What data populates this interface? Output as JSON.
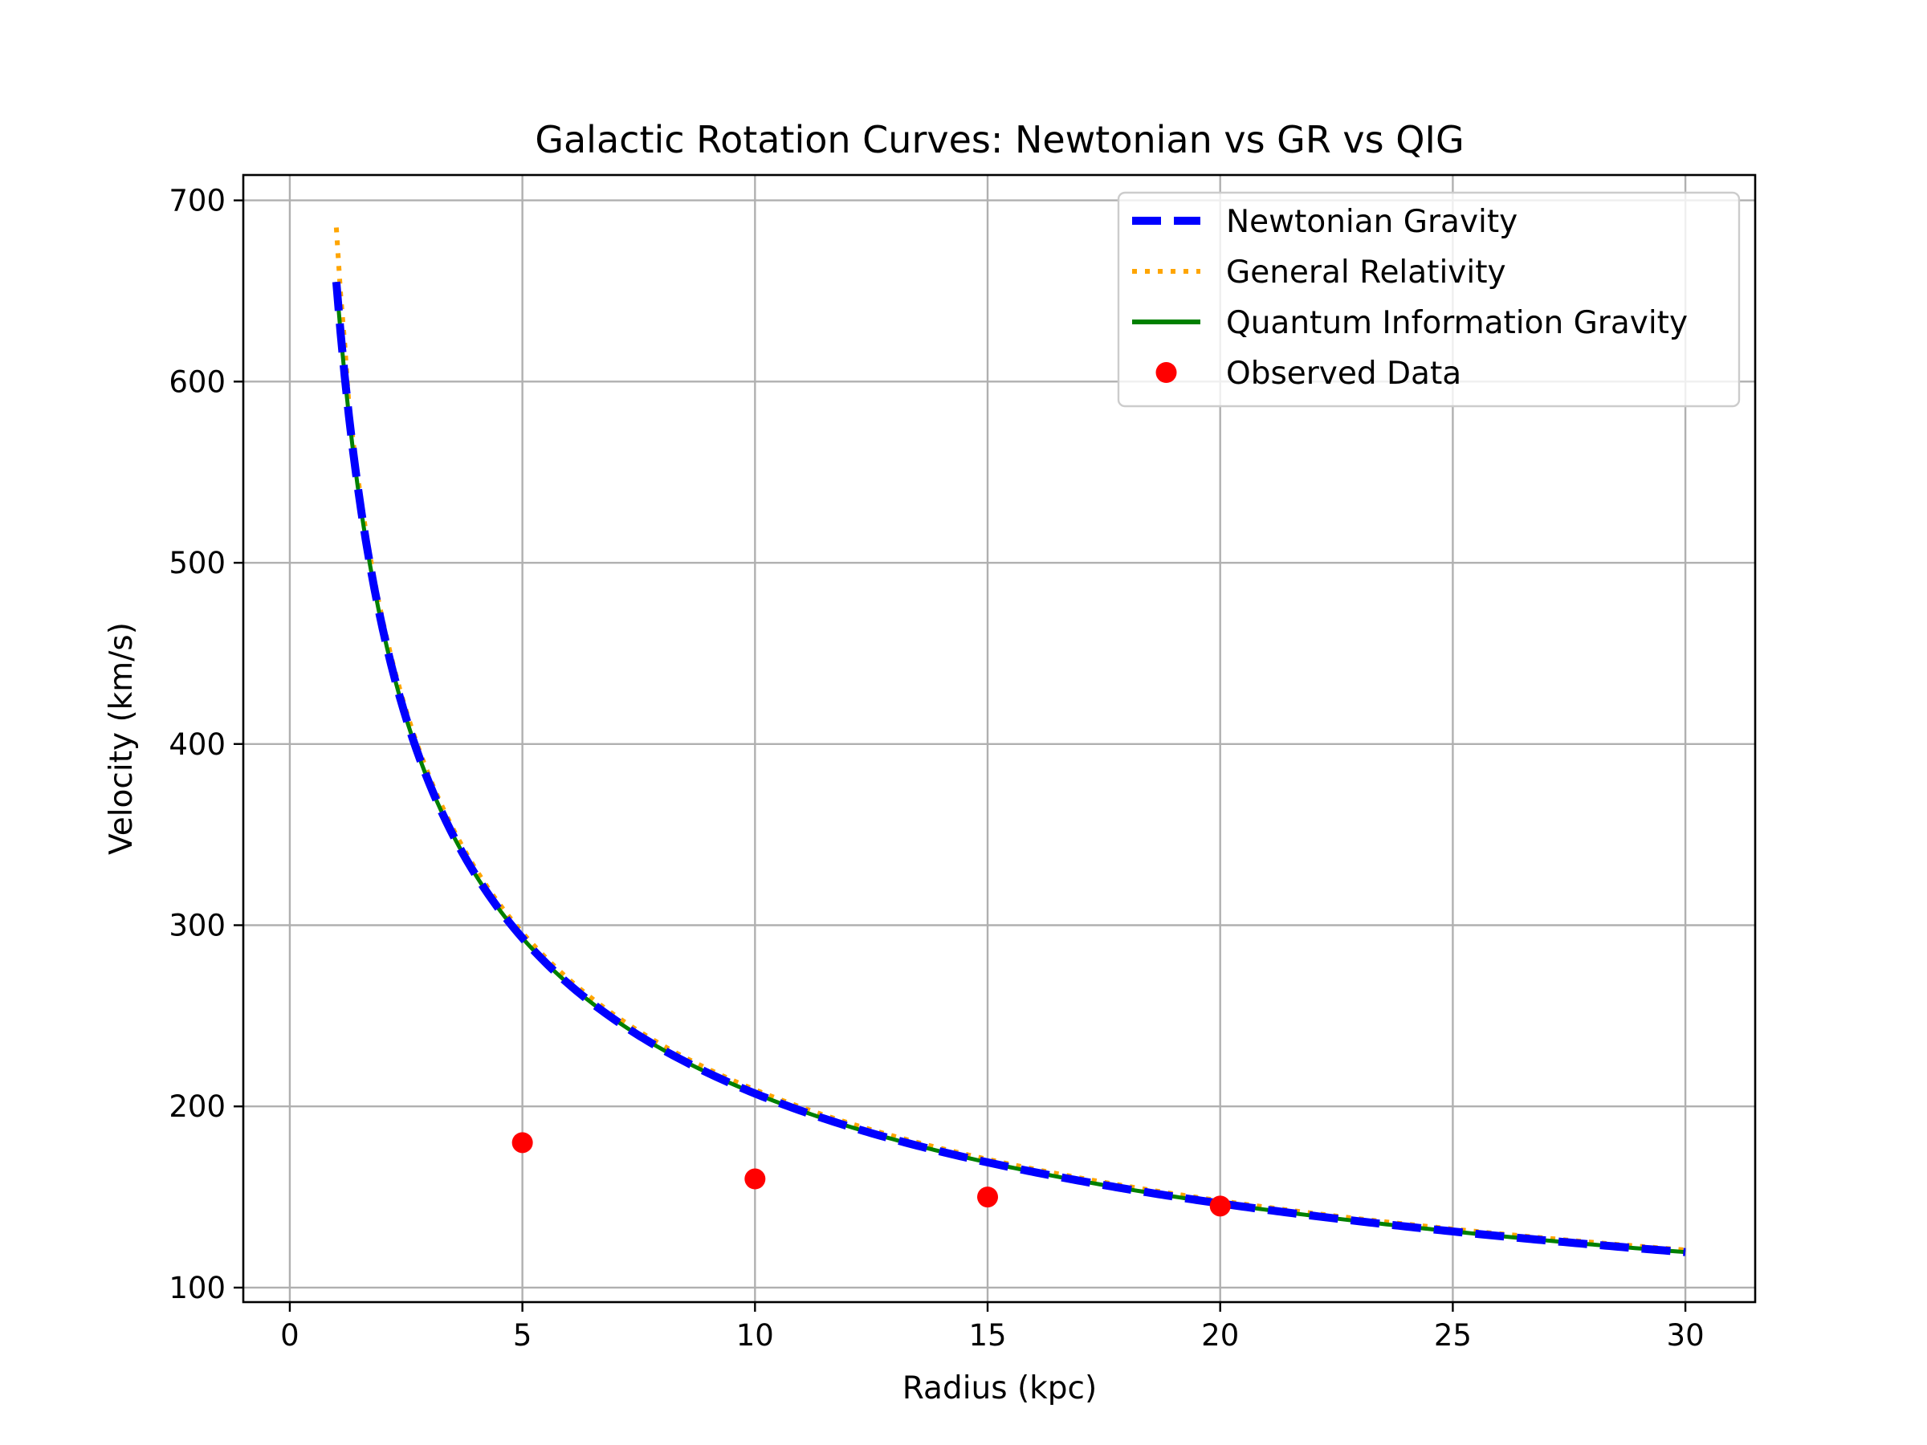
{
  "chart_data": {
    "type": "line",
    "title": "Galactic Rotation Curves: Newtonian vs GR vs QIG",
    "xlabel": "Radius (kpc)",
    "ylabel": "Velocity (km/s)",
    "xlim": [
      -1.0,
      31.5
    ],
    "ylim": [
      92,
      714
    ],
    "xticks": [
      0,
      5,
      10,
      15,
      20,
      25,
      30
    ],
    "yticks": [
      100,
      200,
      300,
      400,
      500,
      600,
      700
    ],
    "grid": true,
    "legend_position": "upper right",
    "curve_model": {
      "description_of_series": "v(r) = 655 / sqrt(r), r from 1 to 30 kpc",
      "r_min": 1,
      "r_max": 30,
      "newtonian_coefficient": 655,
      "gr_coefficient_factor": 1.01,
      "gr_near_center": [
        [
          1.0,
          685
        ],
        [
          1.1,
          645
        ],
        [
          1.25,
          600
        ]
      ]
    },
    "series": [
      {
        "name": "Newtonian Gravity",
        "style": "dashed",
        "color": "#0000ff",
        "x": [
          1,
          1.25,
          1.5,
          2,
          2.5,
          3,
          4,
          5,
          6,
          8,
          10,
          12,
          15,
          18,
          20,
          22,
          25,
          28,
          30
        ],
        "y": [
          655,
          586,
          535,
          463,
          414,
          378,
          328,
          293,
          267,
          232,
          207,
          189,
          169,
          154,
          146,
          140,
          131,
          124,
          120
        ]
      },
      {
        "name": "General Relativity",
        "style": "dotted",
        "color": "#ffa500",
        "x": [
          1,
          1.1,
          1.25,
          1.5,
          2,
          2.5,
          3,
          4,
          5,
          6,
          8,
          10,
          12,
          15,
          18,
          20,
          22,
          25,
          28,
          30
        ],
        "y": [
          685,
          645,
          600,
          541,
          468,
          419,
          382,
          331,
          296,
          270,
          234,
          209,
          191,
          171,
          156,
          148,
          141,
          132,
          125,
          121
        ]
      },
      {
        "name": "Quantum Information Gravity",
        "style": "solid",
        "color": "#008000",
        "x": [
          1,
          1.25,
          1.5,
          2,
          2.5,
          3,
          4,
          5,
          6,
          8,
          10,
          12,
          15,
          18,
          20,
          22,
          25,
          28,
          30
        ],
        "y": [
          655,
          586,
          535,
          463,
          414,
          378,
          328,
          293,
          267,
          232,
          207,
          189,
          169,
          154,
          146,
          140,
          131,
          124,
          120
        ]
      },
      {
        "name": "Observed Data",
        "style": "scatter",
        "color": "#ff0000",
        "x": [
          5,
          10,
          15,
          20
        ],
        "y": [
          180,
          160,
          150,
          145
        ]
      }
    ]
  }
}
